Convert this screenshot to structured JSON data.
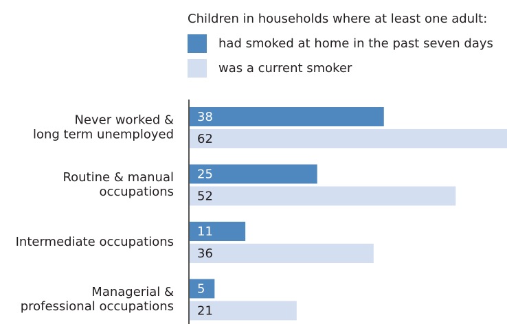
{
  "chart_data": {
    "type": "bar",
    "orientation": "horizontal",
    "legend_title": "Children in households where at least one adult:",
    "categories": [
      [
        "Never worked &",
        "long term unemployed"
      ],
      [
        "Routine & manual",
        "occupations"
      ],
      [
        "Intermediate occupations"
      ],
      [
        "Managerial &",
        "professional occupations"
      ]
    ],
    "series": [
      {
        "name": "had smoked at home in the past seven days",
        "color": "#4f87bf",
        "label_color": "#ffffff",
        "values": [
          38,
          25,
          11,
          5
        ]
      },
      {
        "name": "was a current smoker",
        "color": "#d3def0",
        "label_color": "#231f20",
        "values": [
          62,
          52,
          36,
          21
        ]
      }
    ]
  }
}
